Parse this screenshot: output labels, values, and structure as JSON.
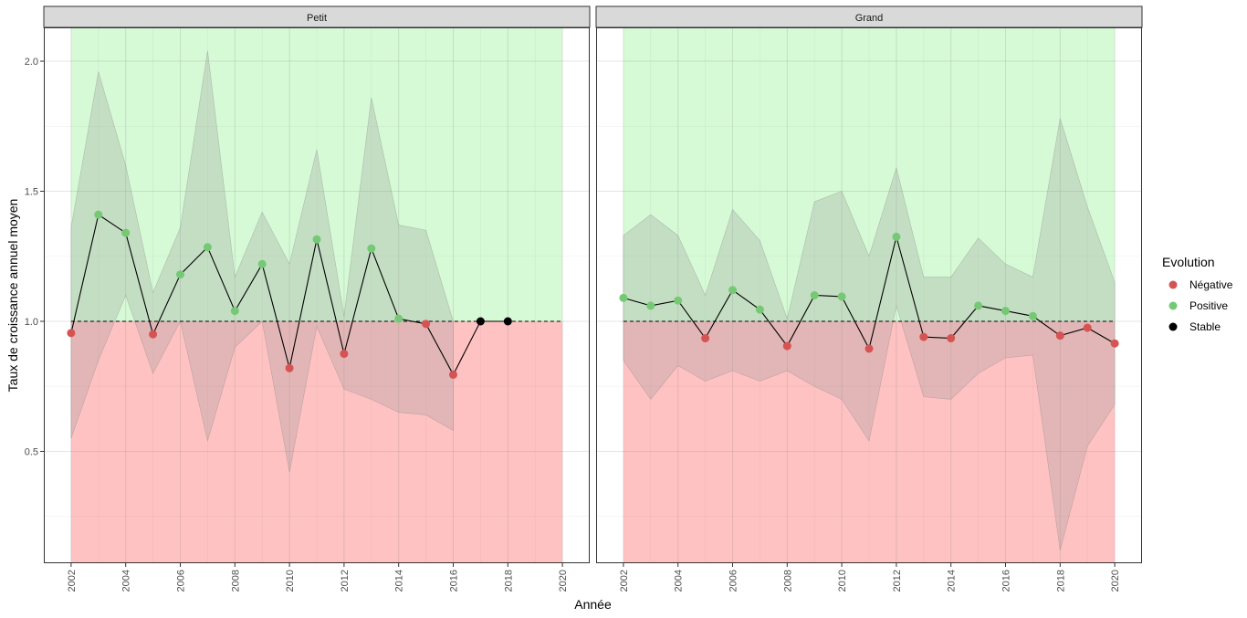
{
  "chart_data": {
    "type": "line",
    "xlabel": "Année",
    "ylabel": "Taux de croissance annuel moyen",
    "ylim": [
      0.07,
      2.13
    ],
    "xlim": [
      2001.0,
      2021.0
    ],
    "y_ticks": [
      0.5,
      1.0,
      1.5,
      2.0
    ],
    "y_tick_labels": [
      "0.5",
      "1.0",
      "1.5",
      "2.0"
    ],
    "x_ticks": [
      2002,
      2004,
      2006,
      2008,
      2010,
      2012,
      2014,
      2016,
      2018,
      2020
    ],
    "x_tick_labels": [
      "2002",
      "2004",
      "2006",
      "2008",
      "2010",
      "2012",
      "2014",
      "2016",
      "2018",
      "2020"
    ],
    "reference_line": 1.0,
    "grid": true,
    "background_zones": {
      "positive_color": "#d6fad6",
      "negative_color": "#ffc2c2",
      "x_range": [
        2002,
        2020
      ]
    },
    "legend": {
      "title": "Evolution",
      "position": "right",
      "items": [
        {
          "label": "Négative",
          "color": "#d65353"
        },
        {
          "label": "Positive",
          "color": "#75c975"
        },
        {
          "label": "Stable",
          "color": "#000000"
        }
      ]
    },
    "panels": [
      {
        "title": "Petit",
        "x": [
          2002,
          2003,
          2004,
          2005,
          2006,
          2007,
          2008,
          2009,
          2010,
          2011,
          2012,
          2013,
          2014,
          2015,
          2016,
          2017,
          2018
        ],
        "y": [
          0.955,
          1.41,
          1.34,
          0.95,
          1.18,
          1.285,
          1.04,
          1.22,
          0.82,
          1.315,
          0.875,
          1.28,
          1.01,
          0.99,
          0.795,
          1.0,
          1.0
        ],
        "status": [
          "Négative",
          "Positive",
          "Positive",
          "Négative",
          "Positive",
          "Positive",
          "Positive",
          "Positive",
          "Négative",
          "Positive",
          "Négative",
          "Positive",
          "Positive",
          "Négative",
          "Négative",
          "Stable",
          "Stable"
        ],
        "ci_x": [
          2002,
          2003,
          2004,
          2005,
          2006,
          2007,
          2008,
          2009,
          2010,
          2011,
          2012,
          2013,
          2014,
          2015,
          2016
        ],
        "ci_upper": [
          1.36,
          1.96,
          1.6,
          1.11,
          1.36,
          2.04,
          1.17,
          1.42,
          1.22,
          1.66,
          1.02,
          1.86,
          1.37,
          1.35,
          1.0
        ],
        "ci_lower": [
          0.55,
          0.85,
          1.1,
          0.8,
          1.0,
          0.54,
          0.9,
          1.0,
          0.42,
          0.98,
          0.74,
          0.7,
          0.65,
          0.64,
          0.58
        ]
      },
      {
        "title": "Grand",
        "x": [
          2002,
          2003,
          2004,
          2005,
          2006,
          2007,
          2008,
          2009,
          2010,
          2011,
          2012,
          2013,
          2014,
          2015,
          2016,
          2017,
          2018,
          2019,
          2020
        ],
        "y": [
          1.09,
          1.06,
          1.08,
          0.935,
          1.12,
          1.045,
          0.905,
          1.1,
          1.095,
          0.895,
          1.325,
          0.94,
          0.935,
          1.06,
          1.04,
          1.02,
          0.945,
          0.975,
          0.915
        ],
        "status": [
          "Positive",
          "Positive",
          "Positive",
          "Négative",
          "Positive",
          "Positive",
          "Négative",
          "Positive",
          "Positive",
          "Négative",
          "Positive",
          "Négative",
          "Négative",
          "Positive",
          "Positive",
          "Positive",
          "Négative",
          "Négative",
          "Négative"
        ],
        "ci_x": [
          2002,
          2003,
          2004,
          2005,
          2006,
          2007,
          2008,
          2009,
          2010,
          2011,
          2012,
          2013,
          2014,
          2015,
          2016,
          2017,
          2018,
          2019,
          2020
        ],
        "ci_upper": [
          1.33,
          1.41,
          1.33,
          1.1,
          1.43,
          1.31,
          1.01,
          1.46,
          1.5,
          1.25,
          1.59,
          1.17,
          1.17,
          1.32,
          1.22,
          1.17,
          1.78,
          1.44,
          1.15
        ],
        "ci_lower": [
          0.85,
          0.7,
          0.83,
          0.77,
          0.81,
          0.77,
          0.81,
          0.75,
          0.7,
          0.54,
          1.06,
          0.71,
          0.7,
          0.8,
          0.86,
          0.87,
          0.12,
          0.52,
          0.68
        ]
      }
    ]
  }
}
